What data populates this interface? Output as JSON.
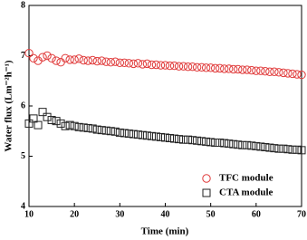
{
  "chart_data": {
    "type": "scatter",
    "x_label": "Time (min)",
    "y_label": "Water flux (Lm⁻²h⁻¹)",
    "x": [
      10,
      11,
      12,
      13,
      14,
      15,
      16,
      17,
      18,
      19,
      20,
      21,
      22,
      23,
      24,
      25,
      26,
      27,
      28,
      29,
      30,
      31,
      32,
      33,
      34,
      35,
      36,
      37,
      38,
      39,
      40,
      41,
      42,
      43,
      44,
      45,
      46,
      47,
      48,
      49,
      50,
      51,
      52,
      53,
      54,
      55,
      56,
      57,
      58,
      59,
      60,
      61,
      62,
      63,
      64,
      65,
      66,
      67,
      68,
      69,
      70
    ],
    "series": [
      {
        "name": "TFC module",
        "color": "#e03a3a",
        "marker": "circle",
        "values": [
          7.05,
          6.95,
          6.9,
          6.97,
          7.0,
          6.95,
          6.9,
          6.87,
          6.95,
          6.92,
          6.92,
          6.94,
          6.91,
          6.9,
          6.91,
          6.89,
          6.9,
          6.88,
          6.87,
          6.88,
          6.86,
          6.86,
          6.85,
          6.84,
          6.85,
          6.83,
          6.84,
          6.82,
          6.82,
          6.81,
          6.81,
          6.8,
          6.8,
          6.79,
          6.79,
          6.78,
          6.78,
          6.77,
          6.77,
          6.76,
          6.76,
          6.75,
          6.75,
          6.74,
          6.74,
          6.73,
          6.73,
          6.72,
          6.72,
          6.71,
          6.7,
          6.7,
          6.69,
          6.68,
          6.68,
          6.67,
          6.66,
          6.65,
          6.64,
          6.63,
          6.62
        ]
      },
      {
        "name": "CTA module",
        "color": "#222222",
        "marker": "square",
        "values": [
          5.65,
          5.75,
          5.62,
          5.88,
          5.78,
          5.72,
          5.7,
          5.65,
          5.6,
          5.62,
          5.6,
          5.58,
          5.57,
          5.56,
          5.55,
          5.53,
          5.52,
          5.51,
          5.5,
          5.49,
          5.47,
          5.46,
          5.45,
          5.44,
          5.43,
          5.42,
          5.41,
          5.4,
          5.39,
          5.38,
          5.37,
          5.36,
          5.35,
          5.34,
          5.33,
          5.33,
          5.32,
          5.31,
          5.3,
          5.29,
          5.28,
          5.27,
          5.27,
          5.26,
          5.25,
          5.24,
          5.23,
          5.22,
          5.22,
          5.21,
          5.2,
          5.19,
          5.18,
          5.17,
          5.16,
          5.15,
          5.15,
          5.14,
          5.13,
          5.13,
          5.12
        ]
      }
    ],
    "xlim": [
      10,
      70
    ],
    "xticks": [
      10,
      20,
      30,
      40,
      50,
      60,
      70
    ],
    "ylim": [
      4,
      8
    ],
    "yticks": [
      4,
      5,
      6,
      7,
      8
    ],
    "legend": "lower right"
  }
}
